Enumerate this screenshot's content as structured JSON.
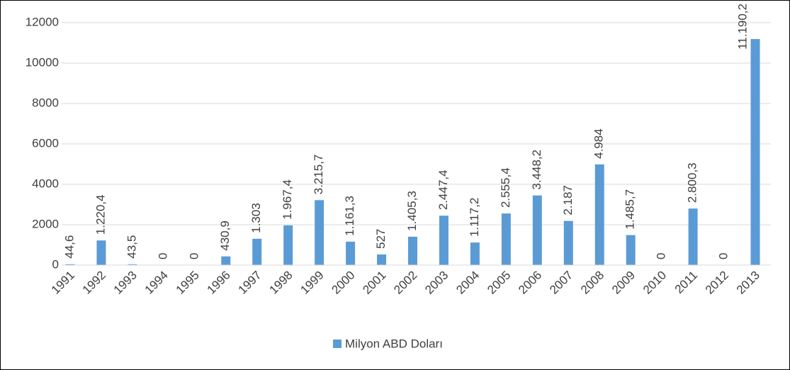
{
  "chart_data": {
    "type": "bar",
    "categories": [
      "1991",
      "1992",
      "1993",
      "1994",
      "1995",
      "1996",
      "1997",
      "1998",
      "1999",
      "2000",
      "2001",
      "2002",
      "2003",
      "2004",
      "2005",
      "2006",
      "2007",
      "2008",
      "2009",
      "2010",
      "2011",
      "2012",
      "2013"
    ],
    "series": [
      {
        "name": "Milyon ABD Doları",
        "color": "#5b9bd5",
        "values": [
          44.6,
          1220.4,
          43.5,
          0,
          0,
          430.9,
          1303,
          1967.4,
          3215.7,
          1161.3,
          527,
          1405.3,
          2447.4,
          1117.2,
          2555.4,
          3448.2,
          2187,
          4984,
          1485.7,
          0,
          2800.3,
          0,
          11190.2
        ],
        "value_labels": [
          "44,6",
          "1.220,4",
          "43,5",
          "0",
          "0",
          "430,9",
          "1.303",
          "1.967,4",
          "3.215,7",
          "1.161,3",
          "527",
          "1.405,3",
          "2.447,4",
          "1.117,2",
          "2.555,4",
          "3.448,2",
          "2.187",
          "4.984",
          "1.485,7",
          "0",
          "2.800,3",
          "0",
          "11.190,2"
        ]
      }
    ],
    "ylim": [
      0,
      12000
    ],
    "yticks": [
      0,
      2000,
      4000,
      6000,
      8000,
      10000,
      12000
    ],
    "grid": true,
    "legend": "bottom"
  }
}
